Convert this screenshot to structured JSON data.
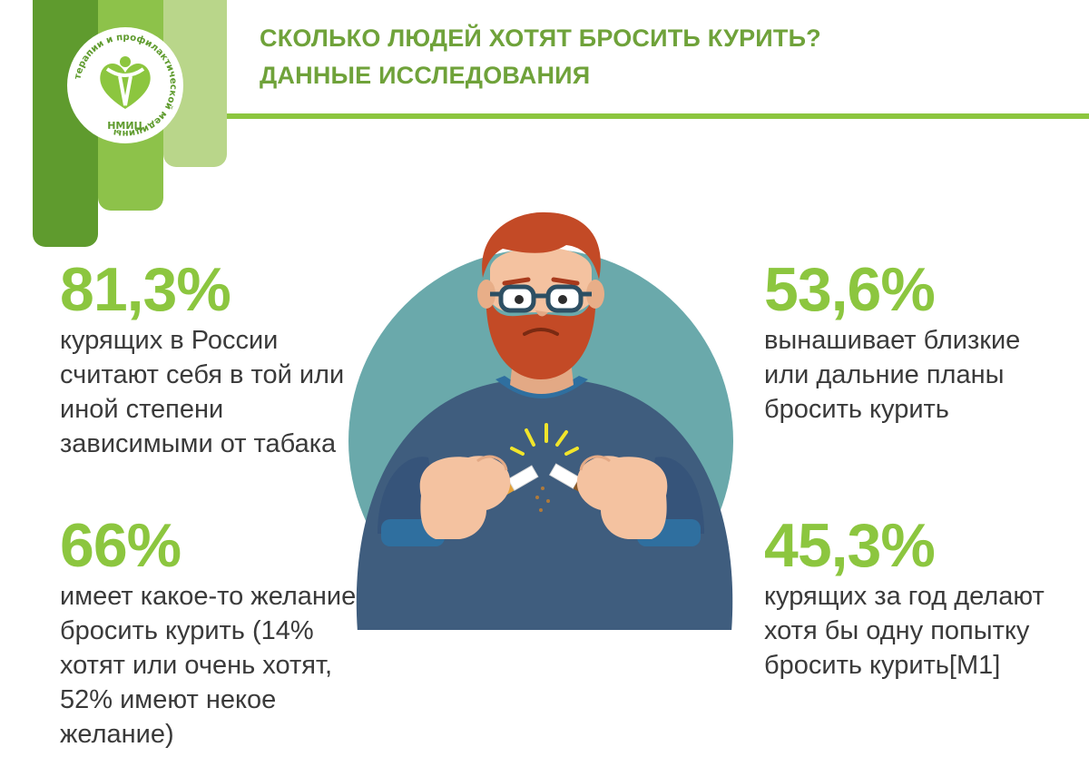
{
  "colors": {
    "accent": "#8cc63f",
    "dark_green": "#5f9b2e",
    "mid_green": "#8dc24a",
    "light_green": "#b9d68a",
    "title_green": "#6fa23a",
    "circle_teal": "#6aa9ab",
    "sweater_blue": "#3f5d7e",
    "hair_red": "#c34a26",
    "skin": "#f4c2a0"
  },
  "logo": {
    "text_arc": "терапии и профилактической медицины",
    "abbr": "НМИЦ"
  },
  "header": {
    "title_line1": "СКОЛЬКО ЛЮДЕЙ ХОТЯТ БРОСИТЬ КУРИТЬ?",
    "title_line2": "ДАННЫЕ ИССЛЕДОВАНИЯ"
  },
  "stats": [
    {
      "value": "81,3%",
      "text": "курящих в России считают себя в той или иной степени зависимыми от табака"
    },
    {
      "value": "66%",
      "text": "имеет какое-то желание бросить курить (14% хотят или очень хотят, 52% имеют некое желание)"
    },
    {
      "value": "53,6%",
      "text": "вынашивает близкие или дальние планы бросить курить"
    },
    {
      "value": "45,3%",
      "text": "курящих за год делают хотя бы одну попытку бросить курить[М1]"
    }
  ],
  "illustration": {
    "icon": "man-breaking-cigarette-icon"
  }
}
